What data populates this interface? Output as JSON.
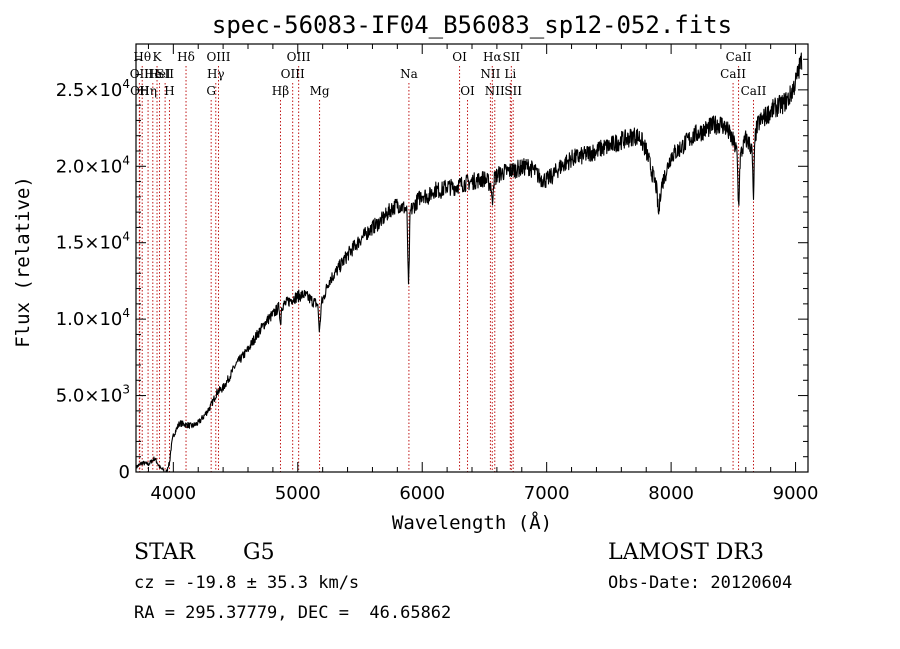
{
  "chart_data": {
    "type": "line",
    "title": "spec-56083-IF04_B56083_sp12-052.fits",
    "xlabel": "Wavelength (Å)",
    "ylabel": "Flux (relative)",
    "xlim": [
      3700,
      9100
    ],
    "ylim": [
      0,
      28000
    ],
    "x_ticks": [
      {
        "value": 4000,
        "label": "4000"
      },
      {
        "value": 5000,
        "label": "5000"
      },
      {
        "value": 6000,
        "label": "6000"
      },
      {
        "value": 7000,
        "label": "7000"
      },
      {
        "value": 8000,
        "label": "8000"
      },
      {
        "value": 9000,
        "label": "9000"
      }
    ],
    "y_ticks": [
      {
        "value": 0,
        "mant": "0",
        "exp": ""
      },
      {
        "value": 5000,
        "mant": "5.0×10",
        "exp": "3"
      },
      {
        "value": 10000,
        "mant": "1.0×10",
        "exp": "4"
      },
      {
        "value": 15000,
        "mant": "1.5×10",
        "exp": "4"
      },
      {
        "value": 20000,
        "mant": "2.0×10",
        "exp": "4"
      },
      {
        "value": 25000,
        "mant": "2.5×10",
        "exp": "4"
      }
    ],
    "grid": false,
    "series": [
      {
        "name": "flux",
        "points": [
          [
            3700,
            300
          ],
          [
            3750,
            600
          ],
          [
            3800,
            500
          ],
          [
            3850,
            900
          ],
          [
            3900,
            200
          ],
          [
            3950,
            100
          ],
          [
            4000,
            2400
          ],
          [
            4050,
            3200
          ],
          [
            4100,
            3100
          ],
          [
            4150,
            3000
          ],
          [
            4200,
            3200
          ],
          [
            4250,
            3700
          ],
          [
            4300,
            4300
          ],
          [
            4350,
            5200
          ],
          [
            4400,
            5500
          ],
          [
            4450,
            6200
          ],
          [
            4500,
            7000
          ],
          [
            4550,
            7500
          ],
          [
            4600,
            8000
          ],
          [
            4650,
            8700
          ],
          [
            4700,
            9300
          ],
          [
            4750,
            9900
          ],
          [
            4800,
            10300
          ],
          [
            4850,
            10800
          ],
          [
            4900,
            11000
          ],
          [
            4950,
            11300
          ],
          [
            5000,
            11500
          ],
          [
            5050,
            11600
          ],
          [
            5100,
            11300
          ],
          [
            5150,
            11000
          ],
          [
            5200,
            11200
          ],
          [
            5250,
            12500
          ],
          [
            5300,
            13000
          ],
          [
            5350,
            13600
          ],
          [
            5400,
            14200
          ],
          [
            5450,
            14700
          ],
          [
            5500,
            15200
          ],
          [
            5550,
            15600
          ],
          [
            5600,
            16000
          ],
          [
            5650,
            16300
          ],
          [
            5700,
            16700
          ],
          [
            5750,
            17200
          ],
          [
            5800,
            17500
          ],
          [
            5850,
            17300
          ],
          [
            5900,
            17000
          ],
          [
            5950,
            17600
          ],
          [
            6000,
            18200
          ],
          [
            6050,
            18000
          ],
          [
            6100,
            18500
          ],
          [
            6150,
            18400
          ],
          [
            6200,
            18700
          ],
          [
            6250,
            18600
          ],
          [
            6300,
            18800
          ],
          [
            6350,
            18900
          ],
          [
            6400,
            19000
          ],
          [
            6450,
            19100
          ],
          [
            6500,
            19200
          ],
          [
            6550,
            18800
          ],
          [
            6600,
            19400
          ],
          [
            6650,
            19600
          ],
          [
            6700,
            19700
          ],
          [
            6750,
            19800
          ],
          [
            6800,
            19900
          ],
          [
            6850,
            20000
          ],
          [
            6900,
            19700
          ],
          [
            6950,
            19200
          ],
          [
            7000,
            19100
          ],
          [
            7050,
            19400
          ],
          [
            7100,
            19900
          ],
          [
            7150,
            20200
          ],
          [
            7200,
            20500
          ],
          [
            7250,
            20600
          ],
          [
            7300,
            20700
          ],
          [
            7350,
            20900
          ],
          [
            7400,
            21000
          ],
          [
            7450,
            21200
          ],
          [
            7500,
            21300
          ],
          [
            7550,
            21500
          ],
          [
            7600,
            21700
          ],
          [
            7650,
            21800
          ],
          [
            7700,
            22000
          ],
          [
            7750,
            21900
          ],
          [
            7800,
            21000
          ],
          [
            7850,
            19500
          ],
          [
            7900,
            18200
          ],
          [
            7950,
            19400
          ],
          [
            8000,
            20700
          ],
          [
            8050,
            21000
          ],
          [
            8100,
            21400
          ],
          [
            8150,
            21800
          ],
          [
            8200,
            22100
          ],
          [
            8250,
            22300
          ],
          [
            8300,
            22500
          ],
          [
            8350,
            22700
          ],
          [
            8400,
            22800
          ],
          [
            8450,
            22400
          ],
          [
            8500,
            21600
          ],
          [
            8550,
            20500
          ],
          [
            8600,
            21800
          ],
          [
            8650,
            21200
          ],
          [
            8700,
            22800
          ],
          [
            8750,
            23200
          ],
          [
            8800,
            23600
          ],
          [
            8850,
            23900
          ],
          [
            8900,
            24100
          ],
          [
            8950,
            24500
          ],
          [
            9000,
            25500
          ],
          [
            9050,
            27000
          ]
        ],
        "features": [
          {
            "x": 5890,
            "depth": 5000,
            "width": 8
          },
          {
            "x": 8542,
            "depth": 3200,
            "width": 8
          },
          {
            "x": 8662,
            "depth": 3600,
            "width": 8
          },
          {
            "x": 6563,
            "depth": 1500,
            "width": 6
          },
          {
            "x": 5175,
            "depth": 1800,
            "width": 10
          },
          {
            "x": 4861,
            "depth": 1200,
            "width": 6
          },
          {
            "x": 3934,
            "depth": 400,
            "width": 8
          },
          {
            "x": 3969,
            "depth": 400,
            "width": 8
          },
          {
            "x": 7900,
            "depth": 1300,
            "width": 12
          }
        ]
      }
    ],
    "spectral_lines": [
      {
        "x": 3727,
        "label": "OII",
        "row": 2
      },
      {
        "x": 3730,
        "label": "OII",
        "row": 3
      },
      {
        "x": 3750,
        "label": "Hθ",
        "row": 1
      },
      {
        "x": 3797,
        "label": "Hη",
        "row": 3
      },
      {
        "x": 3835,
        "label": "He",
        "row": 2
      },
      {
        "x": 3869,
        "label": "K",
        "row": 1
      },
      {
        "x": 3889,
        "label": "HeI",
        "row": 2
      },
      {
        "x": 3934,
        "label": "SII",
        "row": 2
      },
      {
        "x": 3969,
        "label": "H",
        "row": 3
      },
      {
        "x": 4102,
        "label": "Hδ",
        "row": 1
      },
      {
        "x": 4304,
        "label": "G",
        "row": 3
      },
      {
        "x": 4341,
        "label": "Hγ",
        "row": 2
      },
      {
        "x": 4363,
        "label": "OIII",
        "row": 1
      },
      {
        "x": 4861,
        "label": "Hβ",
        "row": 3
      },
      {
        "x": 4959,
        "label": "OIII",
        "row": 2
      },
      {
        "x": 5007,
        "label": "OIII",
        "row": 1
      },
      {
        "x": 5175,
        "label": "Mg",
        "row": 3
      },
      {
        "x": 5893,
        "label": "Na",
        "row": 2
      },
      {
        "x": 6300,
        "label": "OI",
        "row": 1
      },
      {
        "x": 6364,
        "label": "OI",
        "row": 3
      },
      {
        "x": 6548,
        "label": "NII",
        "row": 2
      },
      {
        "x": 6563,
        "label": "Hα",
        "row": 1
      },
      {
        "x": 6583,
        "label": "NII",
        "row": 3
      },
      {
        "x": 6708,
        "label": "Li",
        "row": 2
      },
      {
        "x": 6716,
        "label": "SII",
        "row": 1
      },
      {
        "x": 6731,
        "label": "SII",
        "row": 3
      },
      {
        "x": 8498,
        "label": "CaII",
        "row": 2
      },
      {
        "x": 8542,
        "label": "CaII",
        "row": 1
      },
      {
        "x": 8662,
        "label": "CaII",
        "row": 3
      }
    ]
  },
  "info": {
    "object_class": "STAR",
    "subclass": "G5",
    "survey": "LAMOST DR3",
    "redshift": "cz = -19.8 ± 35.3 km/s",
    "obs_date": "Obs-Date: 20120604",
    "coords": "RA = 295.37779, DEC =  46.65862"
  }
}
